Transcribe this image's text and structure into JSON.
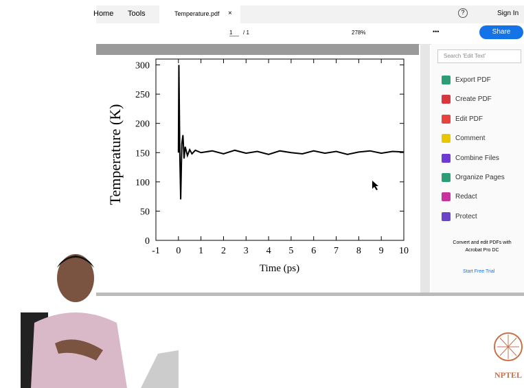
{
  "toolbar": {
    "tabs": [
      "Home",
      "Tools",
      "Temperature.pdf"
    ],
    "close": "×",
    "help": "?",
    "sign_in": "Sign In",
    "page": "1",
    "page_total": "/ 1",
    "zoom": "278%",
    "more": "•••",
    "share": "Share"
  },
  "sidebar": {
    "search": "Search 'Edit Text'",
    "tools": [
      {
        "label": "Export PDF",
        "color": "#2d9d78"
      },
      {
        "label": "Create PDF",
        "color": "#d7373f"
      },
      {
        "label": "Edit PDF",
        "color": "#e8423f"
      },
      {
        "label": "Comment",
        "color": "#e8c600"
      },
      {
        "label": "Combine Files",
        "color": "#6d3bd1"
      },
      {
        "label": "Organize Pages",
        "color": "#2d9d78"
      },
      {
        "label": "Redact",
        "color": "#c7329d"
      },
      {
        "label": "Protect",
        "color": "#6a45c9"
      }
    ],
    "promo": "Convert and edit PDFs with Acrobat Pro DC",
    "trial": "Start Free Trial"
  },
  "logo": "NPTEL",
  "chart_data": {
    "type": "line",
    "xlabel": "Time (ps)",
    "ylabel": "Temperature (K)",
    "xlim": [
      -1,
      10
    ],
    "xticks": [
      -1,
      0,
      1,
      2,
      3,
      4,
      5,
      6,
      7,
      8,
      9,
      10
    ],
    "ylim": [
      0,
      310
    ],
    "yticks": [
      0,
      50,
      100,
      150,
      200,
      250,
      300
    ],
    "series": [
      {
        "color": "#000000",
        "x": [
          0,
          0.02,
          0.06,
          0.1,
          0.15,
          0.2,
          0.25,
          0.3,
          0.4,
          0.5,
          0.6,
          0.75,
          1,
          1.5,
          2,
          2.5,
          3,
          3.5,
          4,
          4.5,
          5,
          5.5,
          6,
          6.5,
          7,
          7.5,
          8,
          8.5,
          9,
          9.5,
          10
        ],
        "values": [
          150,
          300,
          150,
          70,
          165,
          180,
          140,
          160,
          145,
          155,
          148,
          154,
          150,
          153,
          148,
          154,
          149,
          152,
          147,
          153,
          150,
          148,
          153,
          149,
          152,
          147,
          151,
          153,
          149,
          152,
          151
        ]
      }
    ]
  }
}
